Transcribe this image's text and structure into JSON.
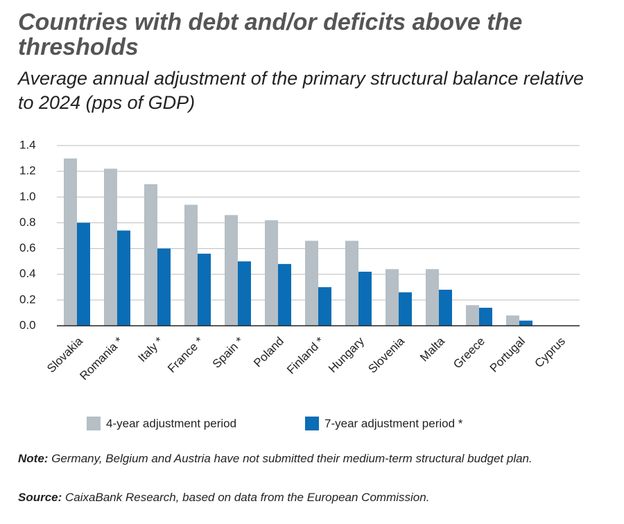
{
  "chart_data": {
    "type": "bar",
    "title": "Countries with debt and/or deficits above the thresholds",
    "subtitle": "Average annual adjustment of the primary structural balance relative to 2024 (pps of GDP)",
    "categories": [
      "Slovakia",
      "Romania *",
      "Italy *",
      "France *",
      "Spain *",
      "Poland",
      "Finland *",
      "Hungary",
      "Slovenia",
      "Malta",
      "Greece",
      "Portugal",
      "Cyprus"
    ],
    "series": [
      {
        "name": "4-year adjustment period",
        "color": "#b5bfc5",
        "values": [
          1.3,
          1.22,
          1.1,
          0.94,
          0.86,
          0.82,
          0.66,
          0.66,
          0.44,
          0.44,
          0.16,
          0.08,
          0
        ]
      },
      {
        "name": "7-year adjustment period *",
        "color": "#0b6db5",
        "values": [
          0.8,
          0.74,
          0.6,
          0.56,
          0.5,
          0.48,
          0.3,
          0.42,
          0.26,
          0.28,
          0.14,
          0.04,
          0
        ]
      }
    ],
    "ylim": [
      0,
      1.4
    ],
    "yticks": [
      {
        "value": 0,
        "label": "0.0"
      },
      0.2,
      0.4,
      0.6,
      0.8,
      {
        "value": 1,
        "label": "1.0"
      },
      1.2,
      1.4
    ],
    "grid": true,
    "legend": "bottom",
    "note_label": "Note:",
    "note": "Germany, Belgium and Austria have not submitted their medium-term structural budget plan.",
    "source_label": "Source:",
    "source": "CaixaBank Research, based on data from the European Commission."
  }
}
